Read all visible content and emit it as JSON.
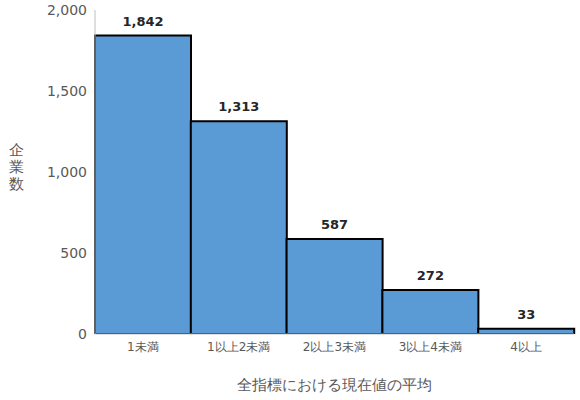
{
  "chart_data": {
    "type": "bar",
    "categories": [
      "1未満",
      "1以上2未満",
      "2以上3未満",
      "3以上4未満",
      "4以上"
    ],
    "values": [
      1842,
      1313,
      587,
      272,
      33
    ],
    "value_labels": [
      "1,842",
      "1,313",
      "587",
      "272",
      "33"
    ],
    "color": "#5b9bd5",
    "ylim": [
      0,
      2000
    ],
    "yticks": [
      0,
      500,
      {
        "value": 1000,
        "label": "1,000"
      },
      {
        "value": 1500,
        "label": "1,500"
      },
      {
        "value": 2000,
        "label": "2,000"
      }
    ],
    "xlabel": "全指標における現在値の平均",
    "ylabel": "企業数",
    "grid": false,
    "data_labels": true
  }
}
